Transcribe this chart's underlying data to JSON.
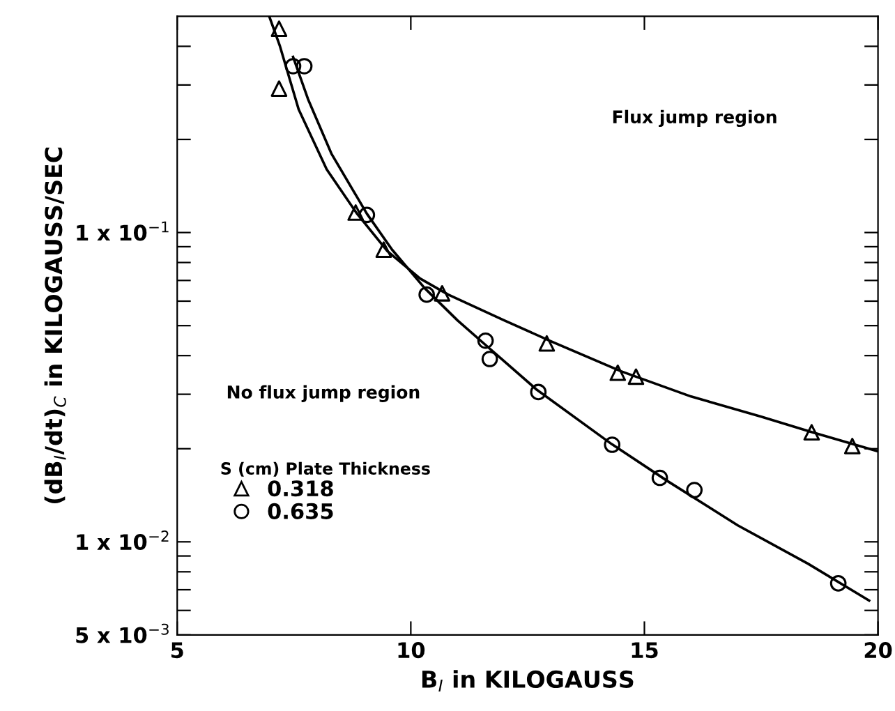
{
  "chart_data": {
    "type": "scatter",
    "xlabel": "B$_{I}$ in KILOGAUSS",
    "ylabel": "(dB$_{I}$/dt)$_{C}$ in KILOGAUSS/SEC",
    "legend_title": "S (cm) Plate Thickness",
    "legend": "left",
    "log": "y",
    "grid": false,
    "xlim": [
      5,
      20
    ],
    "xticks": [
      5,
      10,
      15,
      20
    ],
    "ylim": [
      0.005,
      0.5
    ],
    "yticks": [
      {
        "value": 0.005,
        "label": "5 x 10$^{−3}$"
      },
      {
        "value": 0.006,
        "label": null
      },
      {
        "value": 0.007,
        "label": null
      },
      {
        "value": 0.008,
        "label": null
      },
      {
        "value": 0.009,
        "label": null
      },
      {
        "value": 0.01,
        "label": "1 x 10$^{−2}$"
      },
      {
        "value": 0.02,
        "label": null
      },
      {
        "value": 0.03,
        "label": null
      },
      {
        "value": 0.04,
        "label": null
      },
      {
        "value": 0.05,
        "label": null
      },
      {
        "value": 0.06,
        "label": null
      },
      {
        "value": 0.07,
        "label": null
      },
      {
        "value": 0.08,
        "label": null
      },
      {
        "value": 0.09,
        "label": null
      },
      {
        "value": 0.1,
        "label": "1 x 10$^{−1}$"
      },
      {
        "value": 0.2,
        "label": null
      },
      {
        "value": 0.3,
        "label": null
      },
      {
        "value": 0.4,
        "label": null
      }
    ],
    "annotations": [
      "Flux jump region",
      "No flux jump region"
    ],
    "series": [
      {
        "name": "0.318",
        "color": "#000000",
        "marker": "triangle",
        "x": [
          7.18,
          7.18,
          8.82,
          9.42,
          10.67,
          12.91,
          14.43,
          14.82,
          18.58,
          19.45
        ],
        "values": [
          0.456,
          0.292,
          0.116,
          0.088,
          0.0636,
          0.0438,
          0.0352,
          0.0342,
          0.0226,
          0.0204
        ]
      },
      {
        "name": "0.635",
        "color": "#000000",
        "marker": "circle",
        "x": [
          7.48,
          7.72,
          9.06,
          10.34,
          11.6,
          11.69,
          12.73,
          14.31,
          15.33,
          16.07,
          19.15
        ],
        "values": [
          0.345,
          0.345,
          0.114,
          0.063,
          0.0447,
          0.039,
          0.0305,
          0.0206,
          0.0161,
          0.0147,
          0.00734
        ]
      },
      {
        "type": "line",
        "color": "#000000",
        "marker": "none",
        "line_style": "solid",
        "x": [
          6.97,
          7.2,
          7.6,
          8.2,
          8.85,
          9.5,
          10.2,
          10.8,
          12,
          13,
          14.5,
          16,
          17.5,
          18.6,
          20
        ],
        "values": [
          0.5,
          0.4,
          0.25,
          0.16,
          0.115,
          0.087,
          0.071,
          0.063,
          0.052,
          0.0445,
          0.0356,
          0.0295,
          0.0254,
          0.0226,
          0.0196
        ]
      },
      {
        "type": "line",
        "color": "#000000",
        "marker": "none",
        "line_style": "solid",
        "x": [
          7.48,
          7.8,
          8.3,
          9.06,
          9.6,
          10.3,
          11,
          11.7,
          12.7,
          14.3,
          15.5,
          17,
          18.5,
          19.81
        ],
        "values": [
          0.37,
          0.27,
          0.18,
          0.115,
          0.088,
          0.066,
          0.052,
          0.042,
          0.031,
          0.0207,
          0.0157,
          0.0113,
          0.0085,
          0.00646
        ]
      }
    ]
  }
}
